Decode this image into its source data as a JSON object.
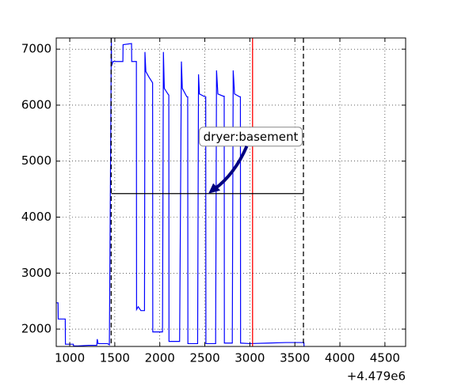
{
  "chart_data": {
    "type": "line",
    "x_offset_label": "+4.479e6",
    "xlim": [
      850,
      4730
    ],
    "ylim": [
      1690,
      7200
    ],
    "xticks": [
      1000,
      1500,
      2000,
      2500,
      3000,
      3500,
      4000,
      4500
    ],
    "yticks": [
      2000,
      3000,
      4000,
      5000,
      6000,
      7000
    ],
    "grid": true,
    "series": [
      {
        "color": "#0000ff",
        "x": [
          850,
          870,
          872,
          950,
          952,
          1040,
          1042,
          1090,
          1210,
          1300,
          1305,
          1315,
          1420,
          1440,
          1462,
          1464,
          1480,
          1590,
          1592,
          1686,
          1688,
          1740,
          1742,
          1760,
          1790,
          1830,
          1835,
          1845,
          1880,
          1920,
          1922,
          2030,
          2040,
          2050,
          2090,
          2100,
          2102,
          2220,
          2240,
          2250,
          2300,
          2310,
          2312,
          2420,
          2430,
          2440,
          2500,
          2510,
          2512,
          2620,
          2630,
          2645,
          2705,
          2715,
          2717,
          2805,
          2815,
          2830,
          2885,
          2895,
          2897,
          3000,
          3200,
          3400,
          3600,
          3602
        ],
        "values": [
          2470,
          2470,
          2180,
          2180,
          1730,
          1730,
          1700,
          1700,
          1710,
          1710,
          1820,
          1740,
          1740,
          1720,
          7200,
          6700,
          6780,
          6780,
          7080,
          7100,
          6780,
          6780,
          2350,
          2400,
          2330,
          2330,
          6950,
          6600,
          6500,
          6400,
          1950,
          1950,
          6950,
          6300,
          6200,
          6180,
          1780,
          1780,
          6780,
          6300,
          6150,
          6150,
          1740,
          1740,
          6550,
          6200,
          6150,
          6150,
          1740,
          1740,
          6620,
          6200,
          6160,
          6160,
          1750,
          1750,
          6620,
          6200,
          6150,
          6150,
          1750,
          1740,
          1750,
          1760,
          1760,
          1690
        ]
      }
    ],
    "hlines": [
      {
        "value": 4420,
        "xmin": 1462,
        "xmax": 3600,
        "color": "#000000"
      }
    ],
    "vlines": [
      {
        "value": 1460,
        "color": "#000000",
        "dashed": true
      },
      {
        "value": 3030,
        "color": "#ff0000",
        "dashed": false
      },
      {
        "value": 3595,
        "color": "#000000",
        "dashed": true
      }
    ],
    "annotations": [
      {
        "text": "dryer:basement",
        "x": 2540,
        "y": 4420,
        "text_x": 3010,
        "text_y": 5430
      }
    ]
  }
}
